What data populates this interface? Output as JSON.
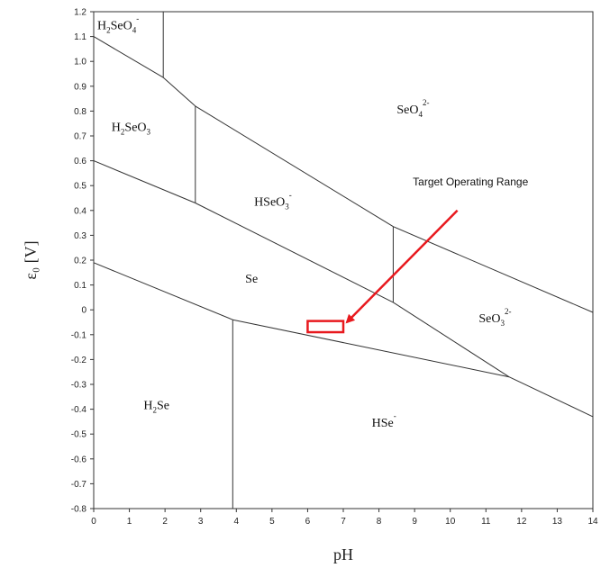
{
  "chart_data": {
    "type": "line",
    "xlabel": "pH",
    "ylabel": "ε₀ [V]",
    "xlim": [
      0,
      14
    ],
    "ylim": [
      -0.8,
      1.2
    ],
    "xticks": [
      "0",
      "1",
      "2",
      "3",
      "4",
      "5",
      "6",
      "7",
      "8",
      "9",
      "10",
      "11",
      "12",
      "13",
      "14"
    ],
    "yticks": [
      "-0.8",
      "-0.7",
      "-0.6",
      "-0.5",
      "-0.4",
      "-0.3",
      "-0.2",
      "-0.1",
      "0",
      "0.1",
      "0.2",
      "0.3",
      "0.4",
      "0.5",
      "0.6",
      "0.7",
      "0.8",
      "0.9",
      "1.0",
      "1.1",
      "1.2"
    ],
    "grid": false,
    "boundaries": [
      {
        "x": [
          0,
          1.95
        ],
        "y": [
          1.1,
          0.935
        ]
      },
      {
        "x": [
          1.95,
          1.95
        ],
        "y": [
          0.935,
          1.2
        ]
      },
      {
        "x": [
          1.95,
          2.85
        ],
        "y": [
          0.935,
          0.82
        ]
      },
      {
        "x": [
          2.85,
          8.4
        ],
        "y": [
          0.82,
          0.335
        ]
      },
      {
        "x": [
          8.4,
          14
        ],
        "y": [
          0.335,
          -0.01
        ]
      },
      {
        "x": [
          2.85,
          2.85
        ],
        "y": [
          0.82,
          0.43
        ]
      },
      {
        "x": [
          8.4,
          8.4
        ],
        "y": [
          0.335,
          0.03
        ]
      },
      {
        "x": [
          0,
          2.85
        ],
        "y": [
          0.6,
          0.43
        ]
      },
      {
        "x": [
          2.85,
          8.4
        ],
        "y": [
          0.43,
          0.03
        ]
      },
      {
        "x": [
          8.4,
          11.65
        ],
        "y": [
          0.03,
          -0.27
        ]
      },
      {
        "x": [
          11.65,
          14
        ],
        "y": [
          -0.27,
          -0.43
        ]
      },
      {
        "x": [
          0,
          3.9
        ],
        "y": [
          0.19,
          -0.04
        ]
      },
      {
        "x": [
          3.9,
          3.9
        ],
        "y": [
          -0.04,
          -0.8
        ]
      },
      {
        "x": [
          3.9,
          11.65
        ],
        "y": [
          -0.04,
          -0.27
        ]
      }
    ],
    "regions": [
      {
        "name": "H2SeO4",
        "base": "H",
        "sub": "2",
        "rest": "SeO",
        "sub2": "4",
        "sup": "-",
        "x": 0.1,
        "y": 1.13
      },
      {
        "name": "H2SeO3",
        "base": "H",
        "sub": "2",
        "rest": "SeO",
        "sub2": "3",
        "sup": "",
        "x": 0.5,
        "y": 0.72
      },
      {
        "name": "SeO4 2-",
        "base": "SeO",
        "sub": "4",
        "rest": "",
        "sub2": "",
        "sup": "2-",
        "x": 8.5,
        "y": 0.79
      },
      {
        "name": "HSeO3 -",
        "base": "HSeO",
        "sub": "3",
        "rest": "",
        "sub2": "",
        "sup": "-",
        "x": 4.5,
        "y": 0.42
      },
      {
        "name": "Se",
        "base": "Se",
        "sub": "",
        "rest": "",
        "sub2": "",
        "sup": "",
        "x": 4.25,
        "y": 0.11
      },
      {
        "name": "SeO3 2-",
        "base": "SeO",
        "sub": "3",
        "rest": "",
        "sub2": "",
        "sup": "2-",
        "x": 10.8,
        "y": -0.05
      },
      {
        "name": "H2Se",
        "base": "H",
        "sub": "2",
        "rest": "Se",
        "sub2": "",
        "sup": "",
        "x": 1.4,
        "y": -0.4
      },
      {
        "name": "HSe -",
        "base": "HSe",
        "sub": "",
        "rest": "",
        "sub2": "",
        "sup": "-",
        "x": 7.8,
        "y": -0.47
      }
    ],
    "annotation": {
      "text": "Target Operating Range",
      "text_x": 8.95,
      "text_y": 0.5,
      "arrow_from": [
        10.2,
        0.4
      ],
      "arrow_to": [
        7.1,
        -0.05
      ],
      "box_x": [
        6.0,
        7.0
      ],
      "box_y": [
        -0.09,
        -0.045
      ],
      "color": "#e8191e"
    }
  }
}
